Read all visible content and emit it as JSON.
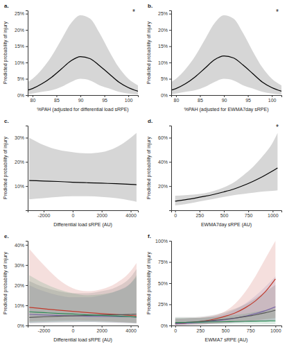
{
  "chart_data": [
    {
      "type": "line",
      "title": "a.",
      "annotation": "*",
      "x_label": "%PAH (adjusted for differential load sRPE)",
      "y_label": "Predicted probability of injury",
      "x": [
        79,
        80,
        82,
        84,
        86,
        88,
        90,
        92,
        94,
        96,
        98,
        100,
        102
      ],
      "series": [
        {
          "color": "#000000",
          "values": [
            1.5,
            2,
            3.5,
            5.5,
            8,
            10.5,
            11.8,
            11.2,
            9,
            6.5,
            4,
            2.3,
            1.2
          ],
          "lower": [
            0.3,
            0.5,
            1,
            1.5,
            2.5,
            4,
            5,
            4.5,
            3,
            2,
            1,
            0.5,
            0.2
          ],
          "upper": [
            4,
            5,
            8,
            12,
            17,
            22,
            24.5,
            23.5,
            19,
            13.5,
            8.5,
            5,
            3
          ]
        }
      ],
      "xlim": [
        79,
        102
      ],
      "ylim": [
        0,
        26
      ],
      "xticks": [
        80,
        85,
        90,
        95,
        100
      ],
      "yticks": [
        {
          "value": 0,
          "label": "0%"
        },
        {
          "value": 5,
          "label": "5%"
        },
        {
          "value": 10,
          "label": "10%"
        },
        {
          "value": 15,
          "label": "15%"
        },
        {
          "value": 20,
          "label": "20%"
        },
        {
          "value": 25,
          "label": "25%"
        }
      ]
    },
    {
      "type": "line",
      "title": "b.",
      "annotation": "*",
      "x_label": "%PAH (adjusted for EWMA7day sRPE)",
      "y_label": "Predicted probability of injury",
      "x": [
        79,
        80,
        82,
        84,
        86,
        88,
        90,
        92,
        94,
        96,
        98,
        100,
        102
      ],
      "series": [
        {
          "color": "#000000",
          "values": [
            1.5,
            2,
            3.5,
            5.6,
            8.2,
            10.8,
            12,
            11.4,
            9.2,
            6.6,
            4,
            2.3,
            1.2
          ],
          "lower": [
            0.3,
            0.5,
            1,
            1.5,
            2.5,
            4,
            5,
            4.5,
            3,
            2,
            1,
            0.5,
            0.2
          ],
          "upper": [
            4,
            5,
            8,
            12,
            17,
            22,
            24.5,
            23.5,
            19,
            13.5,
            8.5,
            5,
            3
          ]
        }
      ],
      "xlim": [
        79,
        102
      ],
      "ylim": [
        0,
        26
      ],
      "xticks": [
        80,
        85,
        90,
        95,
        100
      ],
      "yticks": [
        {
          "value": 0,
          "label": "0%"
        },
        {
          "value": 5,
          "label": "5%"
        },
        {
          "value": 10,
          "label": "10%"
        },
        {
          "value": 15,
          "label": "15%"
        },
        {
          "value": 20,
          "label": "20%"
        },
        {
          "value": 25,
          "label": "25%"
        }
      ]
    },
    {
      "type": "line",
      "title": "c.",
      "x_label": "Differential load sRPE (AU)",
      "y_label": "Predicted probability of injury",
      "x": [
        -3000,
        -2000,
        -1000,
        0,
        1000,
        2000,
        3000,
        4000,
        4400
      ],
      "series": [
        {
          "color": "#000000",
          "values": [
            12.3,
            12.1,
            11.9,
            11.6,
            11.4,
            11.2,
            11,
            10.7,
            10.6
          ],
          "lower": [
            4.5,
            5,
            5.5,
            5.8,
            5.8,
            5.5,
            5,
            4,
            3.5
          ],
          "upper": [
            30,
            27,
            25,
            24,
            23.5,
            24,
            26,
            30,
            32
          ]
        }
      ],
      "xlim": [
        -3100,
        4500
      ],
      "ylim": [
        0,
        35
      ],
      "xticks": [
        -2000,
        0,
        2000,
        4000
      ],
      "yticks": [
        {
          "value": 10,
          "label": "10%"
        },
        {
          "value": 20,
          "label": "20%"
        },
        {
          "value": 30,
          "label": "30%"
        }
      ]
    },
    {
      "type": "line",
      "title": "d.",
      "annotation": "*",
      "x_label": "EWMA7day sRPE (AU)",
      "y_label": "Predicted probability of injury",
      "x": [
        0,
        100,
        200,
        300,
        400,
        500,
        600,
        700,
        800,
        900,
        1000,
        1050
      ],
      "series": [
        {
          "color": "#000000",
          "values": [
            7.5,
            8.7,
            10,
            11.5,
            13.2,
            15.2,
            17.5,
            20.5,
            24,
            28,
            32.5,
            35
          ],
          "lower": [
            4,
            5,
            6.5,
            8,
            9.5,
            11,
            12.5,
            13.5,
            14.5,
            15.5,
            16,
            16.5
          ],
          "upper": [
            12,
            12.5,
            13,
            14,
            16,
            19,
            23,
            29,
            36,
            45,
            56,
            64
          ]
        }
      ],
      "xlim": [
        -40,
        1090
      ],
      "ylim": [
        0,
        70
      ],
      "xticks": [
        0,
        250,
        500,
        750,
        1000
      ],
      "yticks": [
        {
          "value": 20,
          "label": "20%"
        },
        {
          "value": 40,
          "label": "40%"
        },
        {
          "value": 60,
          "label": "60%"
        }
      ]
    },
    {
      "type": "line",
      "title": "e.",
      "x_label": "Differential load sRPE (AU)",
      "y_label": "Predicted probability of injury",
      "x": [
        -3000,
        -2000,
        -1000,
        0,
        1000,
        2000,
        3000,
        4000,
        4400
      ],
      "series": [
        {
          "color": "#c0392b",
          "values": [
            9,
            8.3,
            7.6,
            7,
            6.4,
            5.9,
            5.5,
            5,
            4.8
          ],
          "lower": [
            2,
            2.2,
            2.4,
            2.5,
            2.4,
            2.2,
            1.8,
            1.5,
            1.3
          ],
          "upper": [
            38,
            30,
            23,
            18.5,
            17,
            18,
            21,
            27,
            31
          ]
        },
        {
          "color": "#7b68a6",
          "values": [
            5.5,
            5.2,
            5,
            4.8,
            4.6,
            4.5,
            4.4,
            4.3,
            4.2
          ],
          "lower": [
            1.2,
            1.4,
            1.6,
            1.7,
            1.7,
            1.6,
            1.4,
            1.2,
            1
          ],
          "upper": [
            20,
            17,
            15,
            14,
            14,
            15,
            17,
            21,
            24
          ]
        },
        {
          "color": "#555555",
          "values": [
            4,
            4.3,
            4.6,
            4.8,
            5,
            5.2,
            5.3,
            5.5,
            5.6
          ],
          "lower": [
            1,
            1.2,
            1.4,
            1.5,
            1.6,
            1.5,
            1.3,
            1.1,
            1
          ],
          "upper": [
            22,
            19,
            17,
            16,
            16,
            17,
            19,
            24,
            28
          ]
        },
        {
          "color": "#2e8b57",
          "values": [
            6.8,
            6.4,
            6,
            5.7,
            5.3,
            5,
            4.7,
            4.4,
            4.2
          ],
          "lower": [
            1.5,
            1.7,
            1.9,
            2,
            2,
            1.9,
            1.7,
            1.4,
            1.2
          ],
          "upper": [
            25,
            21,
            18,
            16,
            15,
            15.5,
            17,
            21,
            25
          ]
        }
      ],
      "xlim": [
        -3100,
        4500
      ],
      "ylim": [
        0,
        42
      ],
      "xticks": [
        -2000,
        0,
        2000,
        4000
      ],
      "yticks": [
        {
          "value": 0,
          "label": "0%"
        },
        {
          "value": 10,
          "label": "10%"
        },
        {
          "value": 20,
          "label": "20%"
        },
        {
          "value": 30,
          "label": "30%"
        },
        {
          "value": 40,
          "label": "40%"
        }
      ]
    },
    {
      "type": "line",
      "title": "f.",
      "x_label": "EWMA7 sRPE (AU)",
      "y_label": "Predicted probability of injury",
      "x": [
        0,
        100,
        200,
        300,
        400,
        500,
        600,
        700,
        800,
        900,
        1000
      ],
      "series": [
        {
          "color": "#c0392b",
          "values": [
            2,
            2.8,
            4,
            5.5,
            7.8,
            11,
            15,
            21,
            29,
            40,
            55
          ],
          "lower": [
            0.3,
            0.6,
            1,
            1.5,
            2.2,
            3,
            4,
            5,
            6,
            7.5,
            9
          ],
          "upper": [
            8,
            8.5,
            9,
            10,
            12,
            17,
            26,
            40,
            58,
            79,
            100
          ]
        },
        {
          "color": "#7b68a6",
          "values": [
            2,
            2.6,
            3.3,
            4.2,
            5.4,
            6.8,
            8.7,
            11,
            14,
            17.5,
            22
          ],
          "lower": [
            0.5,
            0.7,
            1,
            1.3,
            1.8,
            2.3,
            3,
            3.8,
            4.5,
            5.5,
            6.5
          ],
          "upper": [
            8,
            8.5,
            9,
            9.5,
            11,
            14,
            19,
            26,
            35,
            46,
            58
          ]
        },
        {
          "color": "#555555",
          "values": [
            3,
            3.6,
            4.3,
            5.2,
            6.2,
            7.4,
            8.8,
            10.5,
            12.5,
            15,
            18
          ],
          "lower": [
            0.8,
            1,
            1.3,
            1.7,
            2.2,
            2.8,
            3.5,
            4.2,
            5,
            5.8,
            6.5
          ],
          "upper": [
            10,
            10,
            10,
            11,
            13,
            16,
            20,
            25,
            32,
            40,
            48
          ]
        },
        {
          "color": "#2e8b57",
          "values": [
            3.5,
            3.7,
            3.9,
            4.1,
            4.3,
            4.5,
            4.7,
            4.9,
            5.1,
            5.3,
            5.5
          ],
          "lower": [
            1.2,
            1.4,
            1.6,
            1.8,
            2,
            2,
            2,
            1.9,
            1.8,
            1.7,
            1.6
          ],
          "upper": [
            9,
            9,
            9,
            9.5,
            10,
            11,
            12.5,
            14,
            16,
            18,
            20
          ]
        }
      ],
      "xlim": [
        -40,
        1060
      ],
      "ylim": [
        0,
        100
      ],
      "xticks": [
        0,
        250,
        500,
        750,
        1000
      ],
      "yticks": [
        {
          "value": 0,
          "label": "0%"
        },
        {
          "value": 25,
          "label": "25%"
        },
        {
          "value": 50,
          "label": "50%"
        },
        {
          "value": 75,
          "label": "75%"
        },
        {
          "value": 100,
          "label": "100%"
        }
      ]
    }
  ]
}
